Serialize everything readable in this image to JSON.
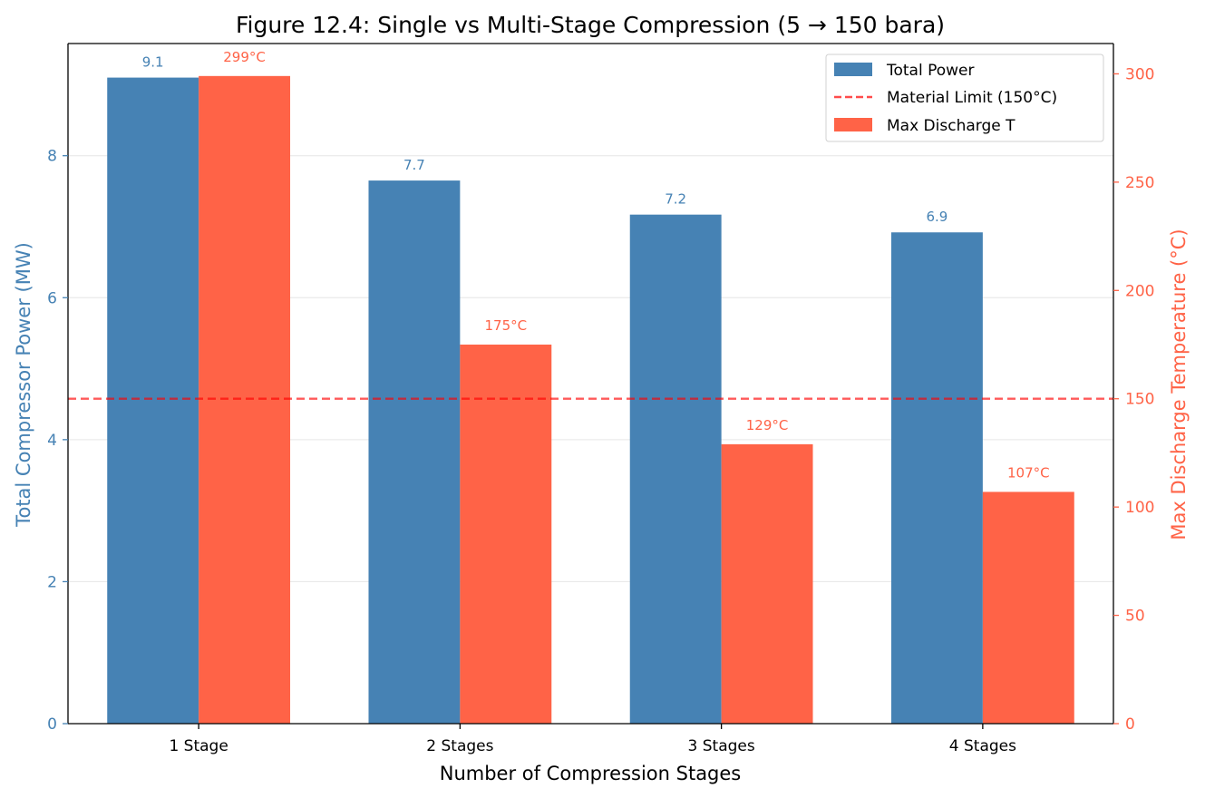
{
  "colors": {
    "power": "#4682b4",
    "temperature": "#ff6347",
    "limit": "#ff0000"
  },
  "chart_data": {
    "type": "bar",
    "title": "Figure 12.4: Single vs Multi-Stage Compression (5 → 150 bara)",
    "xlabel": "Number of Compression Stages",
    "ylabel_left": "Total Compressor Power (MW)",
    "ylabel_right": "Max Discharge Temperature (°C)",
    "categories": [
      "1 Stage",
      "2 Stages",
      "3 Stages",
      "4 Stages"
    ],
    "ylim_left": [
      0,
      9.58
    ],
    "ylim_right": [
      0,
      314
    ],
    "yticks_left": [
      0,
      2,
      4,
      6,
      8
    ],
    "yticks_right": [
      0,
      50,
      100,
      150,
      200,
      250,
      300
    ],
    "grid": "horizontal",
    "legend_position": "top-right",
    "series": [
      {
        "name": "Total Power",
        "axis": "left",
        "values": [
          9.1,
          7.65,
          7.17,
          6.92
        ],
        "labels": [
          "9.1",
          "7.7",
          "7.2",
          "6.9"
        ]
      },
      {
        "name": "Max Discharge T",
        "axis": "right",
        "values": [
          299,
          175,
          129,
          107
        ],
        "labels": [
          "299°C",
          "175°C",
          "129°C",
          "107°C"
        ]
      }
    ],
    "reference_line": {
      "name": "Material Limit (150°C)",
      "axis": "right",
      "value": 150,
      "style": "dashed"
    },
    "legend": [
      "Total Power",
      "Material Limit (150°C)",
      "Max Discharge T"
    ]
  }
}
